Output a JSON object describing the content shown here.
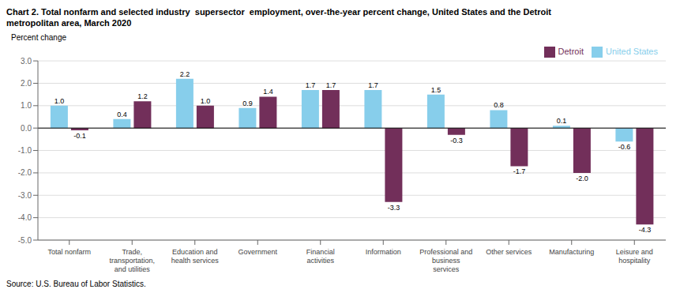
{
  "chart_data": {
    "type": "bar",
    "title": "Chart 2. Total nonfarm and selected industry  supersector  employment, over-the-year percent change, United States and the Detroit\nmetropolitan area, March 2020",
    "ylabel": "Percent change",
    "annotations": [
      "Source: U.S. Bureau of Labor Statistics."
    ],
    "categories": [
      "Total nonfarm",
      "Trade,\ntransportation,\nand utilities",
      "Education and\nhealth services",
      "Government",
      "Financial\nactivities",
      "Information",
      "Professional and\nbusiness\nservices",
      "Other services",
      "Manufacturing",
      "Leisure and\nhospitality"
    ],
    "series": [
      {
        "name": "United States",
        "color": "#87CEEB",
        "values": [
          1.0,
          0.4,
          2.2,
          0.9,
          1.7,
          1.7,
          1.5,
          0.8,
          0.1,
          -0.6
        ],
        "value_labels": [
          "1.0",
          "0.4",
          "2.2",
          "0.9",
          "1.7",
          "1.7",
          "1.5",
          "0.8",
          "0.1",
          "-0.6"
        ]
      },
      {
        "name": "Detroit",
        "color": "#722F5A",
        "values": [
          -0.1,
          1.2,
          1.0,
          1.4,
          1.7,
          -3.3,
          -0.3,
          -1.7,
          -2.0,
          -4.3
        ],
        "value_labels": [
          "-0.1",
          "1.2",
          "1.0",
          "1.4",
          "1.7",
          "-3.3",
          "-0.3",
          "-1.7",
          "-2.0",
          "-4.3"
        ]
      }
    ],
    "ylim": [
      -5.0,
      3.0
    ],
    "yticks": [
      {
        "value": -5.0,
        "label": "-5.0"
      },
      {
        "value": -4.0,
        "label": "-4.0"
      },
      {
        "value": -3.0,
        "label": "-3.0"
      },
      {
        "value": -2.0,
        "label": "-2.0"
      },
      {
        "value": -1.0,
        "label": "-1.0"
      },
      {
        "value": 0.0,
        "label": "0.0"
      },
      {
        "value": 1.0,
        "label": "1.0"
      },
      {
        "value": 2.0,
        "label": "2.0"
      },
      {
        "value": 3.0,
        "label": "3.0"
      }
    ],
    "grid": true,
    "legend": "upper right",
    "data_labels": true
  }
}
